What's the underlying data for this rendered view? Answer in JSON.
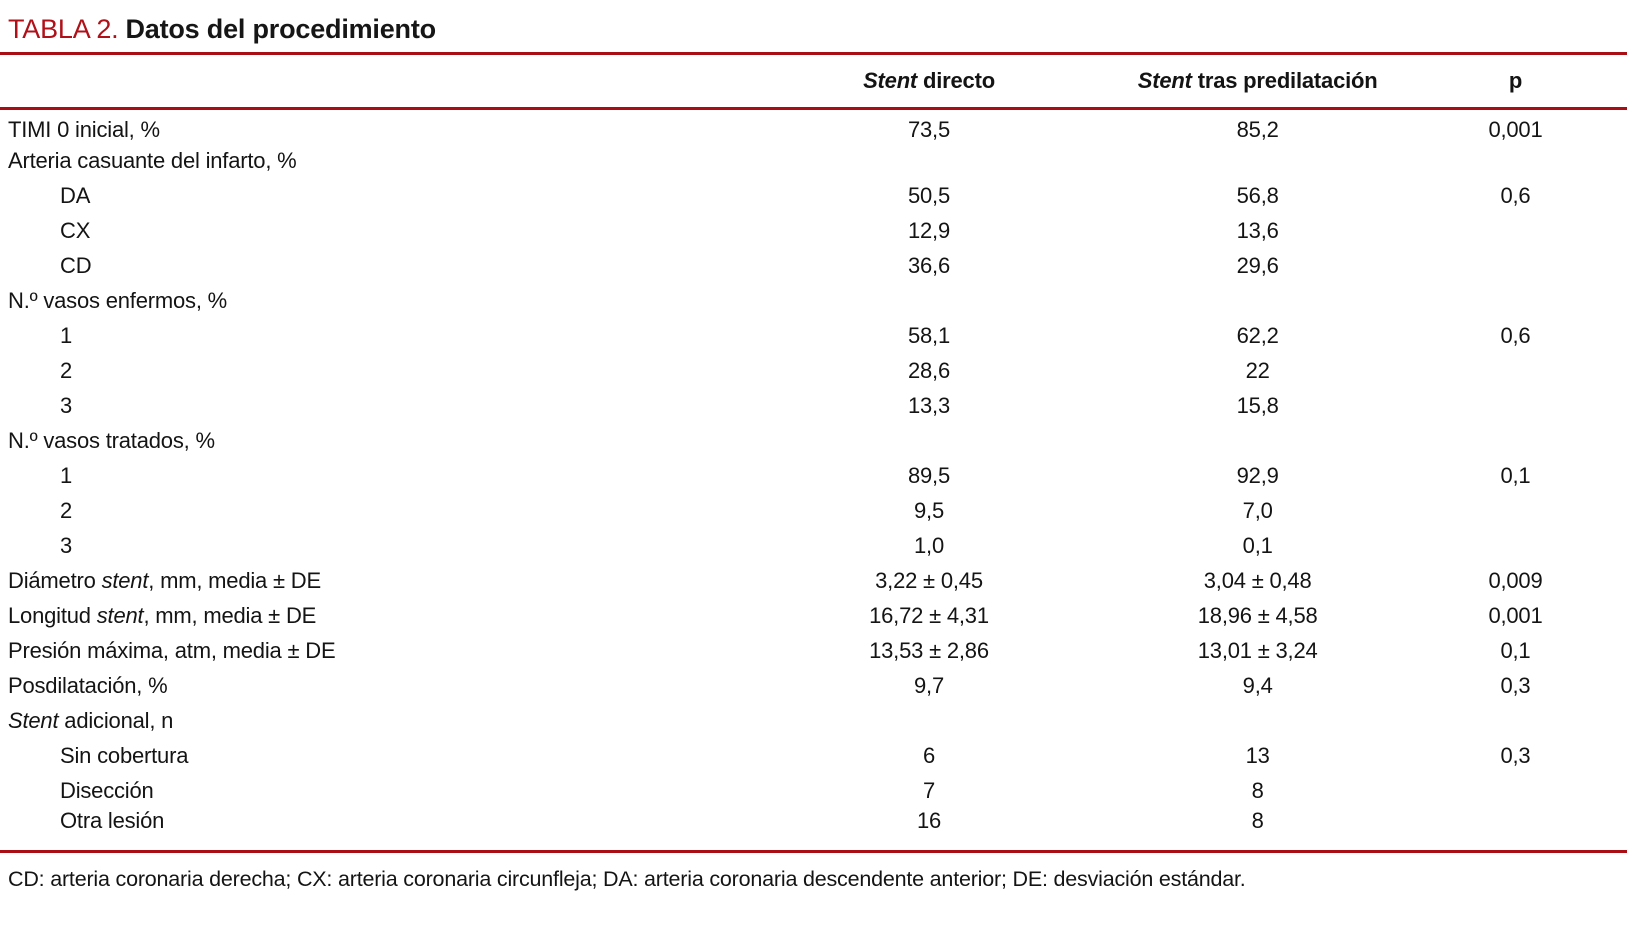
{
  "title": {
    "tag": "TABLA 2.",
    "text": "Datos del procedimiento"
  },
  "colors": {
    "title_red": "#b01119",
    "rule_red": "#a80e13"
  },
  "table": {
    "headers": [
      {
        "segments": []
      },
      {
        "segments": [
          {
            "text": "Stent",
            "italic": true
          },
          {
            "text": " directo",
            "italic": false
          }
        ]
      },
      {
        "segments": [
          {
            "text": "Stent",
            "italic": true
          },
          {
            "text": " tras predilatación",
            "italic": false
          }
        ]
      },
      {
        "segments": [
          {
            "text": "p",
            "italic": false
          }
        ]
      }
    ],
    "rows": [
      {
        "indent": false,
        "label": [
          {
            "text": "TIMI 0 inicial, %"
          }
        ],
        "values": [
          "73,5",
          "85,2",
          "0,001"
        ]
      },
      {
        "indent": false,
        "label": [
          {
            "text": "Arteria casuante del infarto, %"
          }
        ],
        "values": [
          "",
          "",
          ""
        ]
      },
      {
        "indent": true,
        "label": [
          {
            "text": "DA"
          }
        ],
        "values": [
          "50,5",
          "56,8",
          "0,6"
        ]
      },
      {
        "indent": true,
        "label": [
          {
            "text": "CX"
          }
        ],
        "values": [
          "12,9",
          "13,6",
          ""
        ]
      },
      {
        "indent": true,
        "label": [
          {
            "text": "CD"
          }
        ],
        "values": [
          "36,6",
          "29,6",
          ""
        ]
      },
      {
        "indent": false,
        "label": [
          {
            "text": "N.º vasos enfermos, %"
          }
        ],
        "values": [
          "",
          "",
          ""
        ]
      },
      {
        "indent": true,
        "label": [
          {
            "text": "1"
          }
        ],
        "values": [
          "58,1",
          "62,2",
          "0,6"
        ]
      },
      {
        "indent": true,
        "label": [
          {
            "text": "2"
          }
        ],
        "values": [
          "28,6",
          "22",
          ""
        ]
      },
      {
        "indent": true,
        "label": [
          {
            "text": "3"
          }
        ],
        "values": [
          "13,3",
          "15,8",
          ""
        ]
      },
      {
        "indent": false,
        "label": [
          {
            "text": "N.º vasos tratados, %"
          }
        ],
        "values": [
          "",
          "",
          ""
        ]
      },
      {
        "indent": true,
        "label": [
          {
            "text": "1"
          }
        ],
        "values": [
          "89,5",
          "92,9",
          "0,1"
        ]
      },
      {
        "indent": true,
        "label": [
          {
            "text": "2"
          }
        ],
        "values": [
          "9,5",
          "7,0",
          ""
        ]
      },
      {
        "indent": true,
        "label": [
          {
            "text": "3"
          }
        ],
        "values": [
          "1,0",
          "0,1",
          ""
        ]
      },
      {
        "indent": false,
        "label": [
          {
            "text": "Diámetro "
          },
          {
            "text": "stent",
            "italic": true
          },
          {
            "text": ", mm, media ± DE"
          }
        ],
        "values": [
          "3,22 ± 0,45",
          "3,04 ± 0,48",
          "0,009"
        ]
      },
      {
        "indent": false,
        "label": [
          {
            "text": "Longitud "
          },
          {
            "text": "stent",
            "italic": true
          },
          {
            "text": ", mm, media ± DE"
          }
        ],
        "values": [
          "16,72 ± 4,31",
          "18,96 ± 4,58",
          "0,001"
        ]
      },
      {
        "indent": false,
        "label": [
          {
            "text": "Presión máxima, atm, media ± DE"
          }
        ],
        "values": [
          "13,53 ± 2,86",
          "13,01 ± 3,24",
          "0,1"
        ]
      },
      {
        "indent": false,
        "label": [
          {
            "text": "Posdilatación, %"
          }
        ],
        "values": [
          "9,7",
          "9,4",
          "0,3"
        ]
      },
      {
        "indent": false,
        "label": [
          {
            "text": "Stent",
            "italic": true
          },
          {
            "text": " adicional, n"
          }
        ],
        "values": [
          "",
          "",
          ""
        ]
      },
      {
        "indent": true,
        "label": [
          {
            "text": "Sin cobertura"
          }
        ],
        "values": [
          "6",
          "13",
          "0,3"
        ]
      },
      {
        "indent": true,
        "label": [
          {
            "text": "Disección"
          }
        ],
        "values": [
          "7",
          "8",
          ""
        ]
      },
      {
        "indent": true,
        "label": [
          {
            "text": "Otra lesión"
          }
        ],
        "values": [
          "16",
          "8",
          ""
        ]
      }
    ]
  },
  "footnote": "CD: arteria coronaria derecha; CX: arteria coronaria circunfleja; DA: arteria coronaria descendente anterior; DE: desviación estándar."
}
